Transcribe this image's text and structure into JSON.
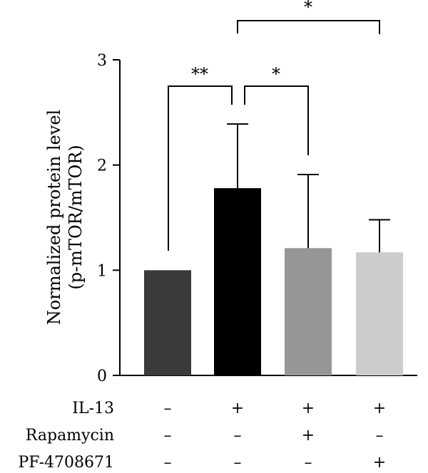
{
  "chart_data": {
    "type": "bar",
    "ylabel_lines": [
      "Normalized protein level",
      "(p-mTOR/mTOR)"
    ],
    "ylim": [
      0,
      3
    ],
    "yticks": [
      "0",
      "1",
      "2",
      "3"
    ],
    "grid": false,
    "legend": "none",
    "values": [
      1.0,
      1.78,
      1.21,
      1.17
    ],
    "errors": [
      0.0,
      0.61,
      0.7,
      0.31
    ],
    "colors": [
      "#3a3a3a",
      "#000000",
      "#969696",
      "#cccccc"
    ],
    "conditions": [
      {
        "label": "IL-13",
        "values": [
          "–",
          "+",
          "+",
          "+"
        ]
      },
      {
        "label": "Rapamycin",
        "values": [
          "–",
          "–",
          "+",
          "–"
        ]
      },
      {
        "label": "PF-4708671",
        "values": [
          "–",
          "–",
          "–",
          "+"
        ]
      }
    ],
    "significance": [
      {
        "from": 0,
        "to": 1,
        "label": "**"
      },
      {
        "from": 1,
        "to": 2,
        "label": "*"
      },
      {
        "from": 1,
        "to": 3,
        "label": "*"
      }
    ]
  }
}
